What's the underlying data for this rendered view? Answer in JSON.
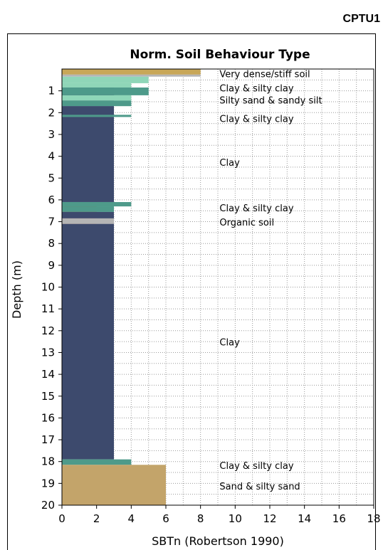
{
  "page": {
    "id_label": "CPTU1"
  },
  "chart_data": {
    "type": "bar",
    "title": "Norm. Soil Behaviour Type",
    "xlabel": "SBTn (Robertson 1990)",
    "ylabel": "Depth (m)",
    "xlim": [
      0,
      18
    ],
    "ylim": [
      0,
      20
    ],
    "y_inverted": true,
    "x_ticks": [
      0,
      2,
      4,
      6,
      8,
      10,
      12,
      14,
      16,
      18
    ],
    "y_ticks": [
      1,
      2,
      3,
      4,
      5,
      6,
      7,
      8,
      9,
      10,
      11,
      12,
      13,
      14,
      15,
      16,
      17,
      18,
      19,
      20
    ],
    "grid": true,
    "colors": {
      "clay": "#3d4a6d",
      "clay_silty_clay": "#4e9a8a",
      "silty_sand": "#8fd6b8",
      "sand": "#c3a46a",
      "organic": "#a15c46",
      "dense_light": "#b9dec6",
      "dense_gold": "#c8a758",
      "stiff_gray": "#b5b5b5"
    },
    "segments": [
      {
        "top": 0.0,
        "bottom": 0.25,
        "value": 5,
        "color_key": "dense_light"
      },
      {
        "top": 0.0,
        "bottom": 0.25,
        "value": 8,
        "color_key": "dense_gold"
      },
      {
        "top": 0.25,
        "bottom": 0.35,
        "value": 8,
        "color_key": "stiff_gray"
      },
      {
        "top": 0.35,
        "bottom": 0.65,
        "value": 5,
        "color_key": "silty_sand"
      },
      {
        "top": 0.65,
        "bottom": 0.85,
        "value": 4,
        "color_key": "silty_sand"
      },
      {
        "top": 0.85,
        "bottom": 1.2,
        "value": 3,
        "color_key": "clay"
      },
      {
        "top": 0.85,
        "bottom": 1.2,
        "value": 5,
        "color_key": "clay_silty_clay"
      },
      {
        "top": 1.2,
        "bottom": 1.45,
        "value": 4,
        "color_key": "silty_sand"
      },
      {
        "top": 1.45,
        "bottom": 1.7,
        "value": 3,
        "color_key": "clay"
      },
      {
        "top": 1.45,
        "bottom": 1.7,
        "value": 4,
        "color_key": "clay_silty_clay"
      },
      {
        "top": 1.7,
        "bottom": 6.1,
        "value": 3,
        "color_key": "clay"
      },
      {
        "top": 2.1,
        "bottom": 2.2,
        "value": 4,
        "color_key": "clay_silty_clay"
      },
      {
        "top": 6.1,
        "bottom": 6.3,
        "value": 4,
        "color_key": "clay_silty_clay"
      },
      {
        "top": 6.3,
        "bottom": 6.55,
        "value": 2,
        "color_key": "organic"
      },
      {
        "top": 6.3,
        "bottom": 6.55,
        "value": 3,
        "color_key": "clay_silty_clay"
      },
      {
        "top": 6.55,
        "bottom": 6.85,
        "value": 3,
        "color_key": "clay"
      },
      {
        "top": 6.85,
        "bottom": 7.1,
        "value": 2,
        "color_key": "organic"
      },
      {
        "top": 6.85,
        "bottom": 7.1,
        "value": 3,
        "color_key": "stiff_gray"
      },
      {
        "top": 7.1,
        "bottom": 17.9,
        "value": 3,
        "color_key": "clay"
      },
      {
        "top": 17.9,
        "bottom": 18.15,
        "value": 4,
        "color_key": "clay_silty_clay"
      },
      {
        "top": 18.15,
        "bottom": 20.0,
        "value": 6,
        "color_key": "sand"
      }
    ],
    "annotations": [
      {
        "depth": 0.25,
        "text": "Very dense/stiff soil"
      },
      {
        "depth": 0.9,
        "text": "Clay & silty clay"
      },
      {
        "depth": 1.45,
        "text": "Silty sand & sandy silt"
      },
      {
        "depth": 2.3,
        "text": "Clay & silty clay"
      },
      {
        "depth": 4.3,
        "text": "Clay"
      },
      {
        "depth": 6.4,
        "text": "Clay & silty clay"
      },
      {
        "depth": 7.05,
        "text": "Organic soil"
      },
      {
        "depth": 12.55,
        "text": "Clay"
      },
      {
        "depth": 18.2,
        "text": "Clay & silty clay"
      },
      {
        "depth": 19.15,
        "text": "Sand & silty sand"
      }
    ]
  }
}
